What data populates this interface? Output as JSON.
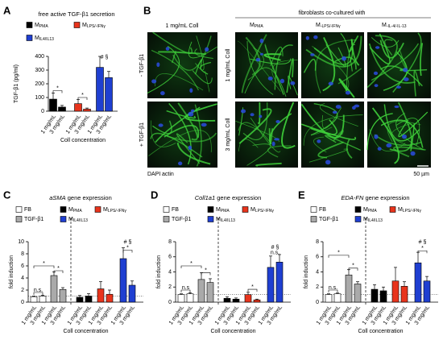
{
  "chart_data": [
    {
      "type": "bar",
      "panel": "A",
      "title": "free active TGF-β1 secretion",
      "ylabel": "TGF-β1 (pg/ml)",
      "xlabel": "Coll concentration",
      "categories": [
        "1 mg/mL",
        "3 mg/mL"
      ],
      "ylim": [
        0,
        400
      ],
      "yticks": [
        0,
        100,
        200,
        300,
        400
      ],
      "series": [
        {
          "name": "M",
          "name_sub": "PMA",
          "color": "#000000",
          "values": [
            88,
            30
          ],
          "errors": [
            45,
            12
          ]
        },
        {
          "name": "M",
          "name_sub": "LPS/-IFNγ",
          "color": "#e8341c",
          "values": [
            55,
            15
          ],
          "errors": [
            30,
            8
          ]
        },
        {
          "name": "M",
          "name_sub": "IL4/IL13",
          "color": "#1f3fd1",
          "values": [
            320,
            245
          ],
          "errors": [
            80,
            45
          ]
        }
      ],
      "annotations": [
        "*",
        "*",
        "# §"
      ]
    },
    {
      "type": "bar",
      "panel": "C",
      "title_gene": "aSMA",
      "title": "gene expression",
      "ylabel": "fold induction",
      "xlabel": "Coll concentration",
      "categories": [
        "1 mg/mL",
        "3 mg/mL"
      ],
      "ylim": [
        0,
        10
      ],
      "yticks": [
        0,
        2,
        4,
        6,
        8,
        10
      ],
      "reference_line": 1,
      "series": [
        {
          "name": "FB",
          "color": "#ffffff",
          "values": [
            0.9,
            1.0
          ],
          "errors": [
            0.1,
            0.15
          ]
        },
        {
          "name": "TGF-β1",
          "color": "#aaaaaa",
          "values": [
            4.4,
            2.1
          ],
          "errors": [
            0.6,
            0.3
          ]
        },
        {
          "name": "M",
          "name_sub": "PMA",
          "color": "#000000",
          "values": [
            0.8,
            1.0
          ],
          "errors": [
            0.3,
            0.4
          ]
        },
        {
          "name": "M",
          "name_sub": "LPS/-IFNγ",
          "color": "#e8341c",
          "values": [
            2.2,
            1.3
          ],
          "errors": [
            1.2,
            0.7
          ]
        },
        {
          "name": "M",
          "name_sub": "IL4/IL13",
          "color": "#1f3fd1",
          "values": [
            7.2,
            2.8
          ],
          "errors": [
            1.8,
            0.7
          ]
        }
      ],
      "annotations": [
        "n.s.",
        "*",
        "*",
        "# §",
        "*"
      ]
    },
    {
      "type": "bar",
      "panel": "D",
      "title_gene": "Coll1a1",
      "title": "gene expression",
      "ylabel": "fold induction",
      "xlabel": "Coll concentration",
      "categories": [
        "1 mg/mL",
        "3 mg/mL"
      ],
      "ylim": [
        0,
        8
      ],
      "yticks": [
        0,
        2,
        4,
        6,
        8
      ],
      "reference_line": 1,
      "series": [
        {
          "name": "FB",
          "color": "#ffffff",
          "values": [
            1.0,
            1.1
          ],
          "errors": [
            0.1,
            0.15
          ]
        },
        {
          "name": "TGF-β1",
          "color": "#aaaaaa",
          "values": [
            3.0,
            2.6
          ],
          "errors": [
            0.9,
            0.5
          ]
        },
        {
          "name": "M",
          "name_sub": "PMA",
          "color": "#000000",
          "values": [
            0.5,
            0.4
          ],
          "errors": [
            0.2,
            0.15
          ]
        },
        {
          "name": "M",
          "name_sub": "LPS/-IFNγ",
          "color": "#e8341c",
          "values": [
            1.0,
            0.3
          ],
          "errors": [
            0.3,
            0.1
          ]
        },
        {
          "name": "M",
          "name_sub": "IL4/IL13",
          "color": "#1f3fd1",
          "values": [
            4.6,
            5.3
          ],
          "errors": [
            1.5,
            1.0
          ]
        }
      ],
      "annotations": [
        "n.s",
        "*",
        "*",
        "*",
        "# §",
        "n.s."
      ]
    },
    {
      "type": "bar",
      "panel": "E",
      "title_gene": "EDA-FN",
      "title": "gene expression",
      "ylabel": "fold induction",
      "xlabel": "Coll concentration",
      "categories": [
        "1 mg/mL",
        "3 mg/mL"
      ],
      "ylim": [
        0,
        8
      ],
      "yticks": [
        0,
        2,
        4,
        6,
        8
      ],
      "reference_line": 1,
      "series": [
        {
          "name": "FB",
          "color": "#ffffff",
          "values": [
            1.0,
            1.1
          ],
          "errors": [
            0.1,
            0.1
          ]
        },
        {
          "name": "TGF-β1",
          "color": "#aaaaaa",
          "values": [
            3.6,
            2.4
          ],
          "errors": [
            0.7,
            0.3
          ]
        },
        {
          "name": "M",
          "name_sub": "PMA",
          "color": "#000000",
          "values": [
            1.7,
            1.5
          ],
          "errors": [
            0.6,
            0.5
          ]
        },
        {
          "name": "M",
          "name_sub": "LPS/-IFNγ",
          "color": "#e8341c",
          "values": [
            2.8,
            2.1
          ],
          "errors": [
            1.8,
            0.6
          ]
        },
        {
          "name": "M",
          "name_sub": "IL4/IL13",
          "color": "#1f3fd1",
          "values": [
            5.2,
            2.8
          ],
          "errors": [
            1.4,
            0.6
          ]
        }
      ],
      "annotations": [
        "n.s.",
        "*",
        "*",
        "# §",
        "*"
      ]
    }
  ],
  "panel_b": {
    "panel": "B",
    "header": "fibroblasts co-cultured with",
    "col_first": "1 mg/mL Coll",
    "columns": [
      {
        "name": "M",
        "name_sub": "PMA"
      },
      {
        "name": "M",
        "name_sub": "-LPS/-IFNγ"
      },
      {
        "name": "M",
        "name_sub": "-IL-4/-IL-13"
      }
    ],
    "rows_treatment": [
      "- TGF-β1",
      "+ TGF-β1"
    ],
    "rows_coll": [
      "1 mg/mL Coll",
      "3 mg/mL Coll"
    ],
    "stain_dapi": "DAPI",
    "stain_actin": "actin",
    "scale_bar": "50 µm"
  }
}
